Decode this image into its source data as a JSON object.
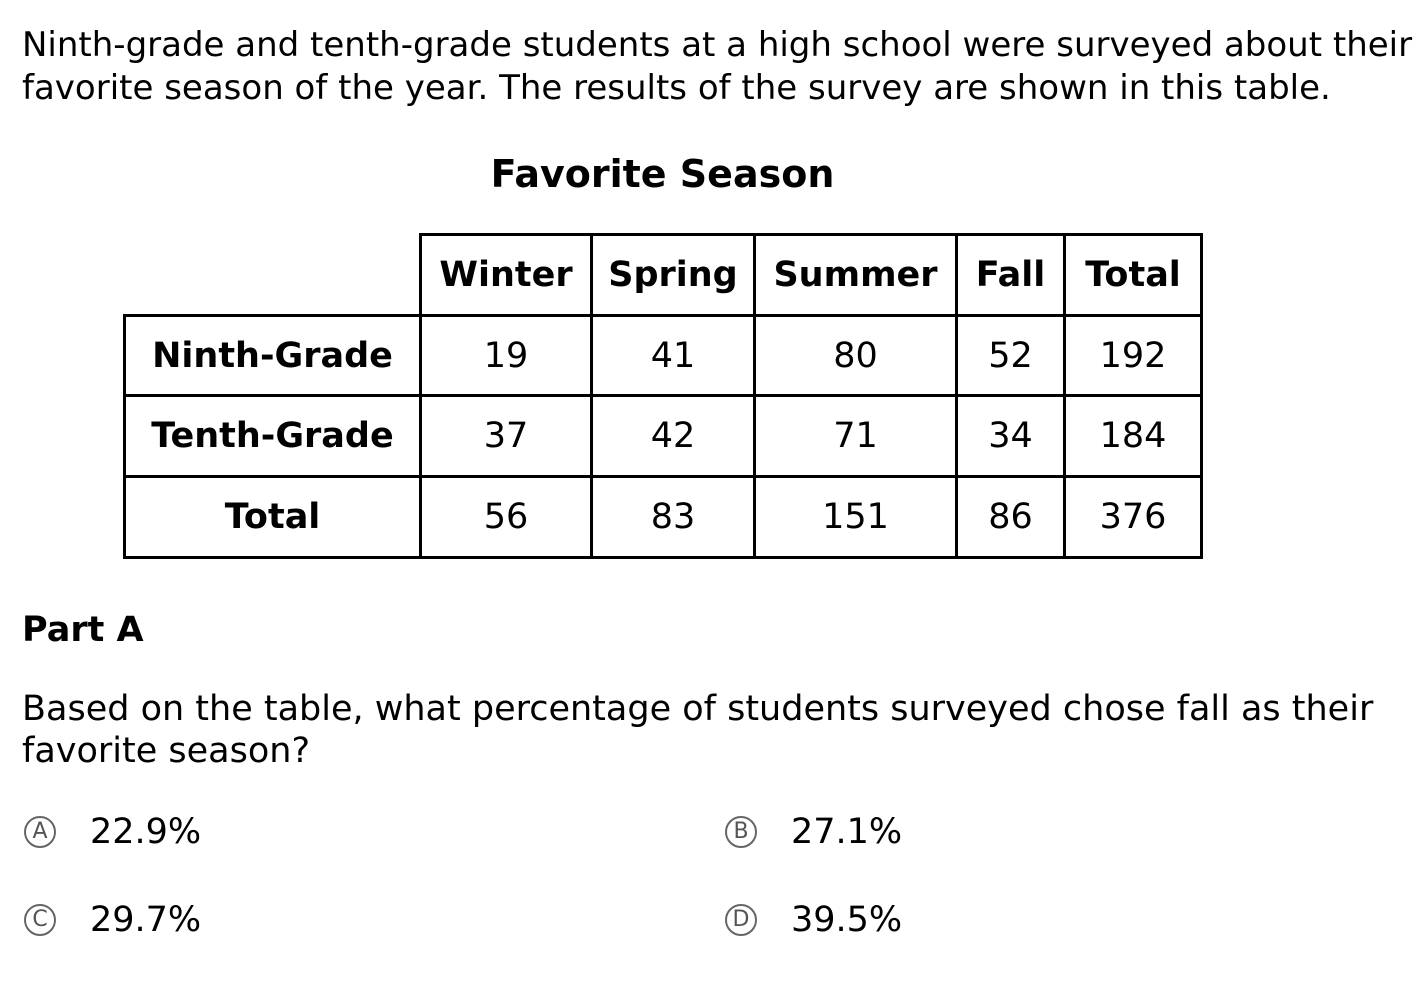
{
  "intro": {
    "line1": "Ninth-grade and tenth-grade students at a high school were surveyed about their",
    "line2": "favorite season of the year. The results of the survey are shown in this table."
  },
  "table": {
    "title": "Favorite Season",
    "columns": [
      "Winter",
      "Spring",
      "Summer",
      "Fall",
      "Total"
    ],
    "rows": [
      {
        "label": "Ninth-Grade",
        "values": [
          "19",
          "41",
          "80",
          "52",
          "192"
        ]
      },
      {
        "label": "Tenth-Grade",
        "values": [
          "37",
          "42",
          "71",
          "34",
          "184"
        ]
      },
      {
        "label": "Total",
        "values": [
          "56",
          "83",
          "151",
          "86",
          "376"
        ]
      }
    ]
  },
  "part_a": {
    "heading": "Part A",
    "question_line1": "Based on the table, what percentage of students surveyed chose fall as their",
    "question_line2": "favorite season?",
    "choices": [
      {
        "letter": "A",
        "text": "22.9%"
      },
      {
        "letter": "B",
        "text": "27.1%"
      },
      {
        "letter": "C",
        "text": "29.7%"
      },
      {
        "letter": "D",
        "text": "39.5%"
      }
    ]
  }
}
